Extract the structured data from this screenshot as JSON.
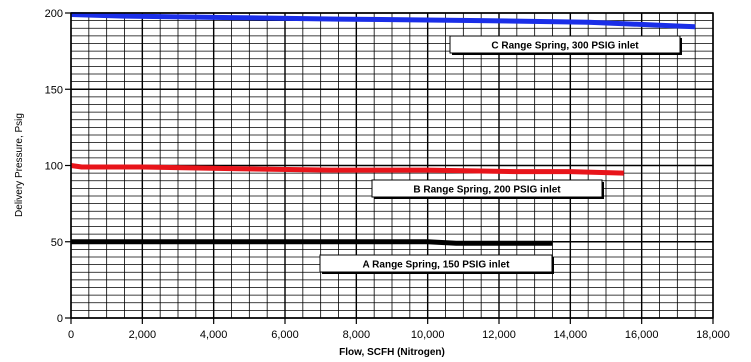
{
  "chart_data": {
    "type": "line",
    "title": "",
    "xlabel": "Flow, SCFH (Nitrogen)",
    "ylabel": "Delivery Pressure, Psig",
    "xlim": [
      0,
      18000
    ],
    "ylim": [
      0,
      200
    ],
    "x_ticks": [
      0,
      2000,
      4000,
      6000,
      8000,
      10000,
      12000,
      14000,
      16000,
      18000
    ],
    "x_tick_labels": [
      "0",
      "2,000",
      "4,000",
      "6,000",
      "8,000",
      "10,000",
      "12,000",
      "14,000",
      "16,000",
      "18,000"
    ],
    "y_ticks": [
      0,
      50,
      100,
      150,
      200
    ],
    "y_tick_labels": [
      "0",
      "50",
      "100",
      "150",
      "200"
    ],
    "grid": true,
    "series": [
      {
        "name": "A Range Spring, 150 PSIG inlet",
        "color": "#000000",
        "x": [
          0,
          2000,
          4000,
          6000,
          8000,
          10000,
          10800,
          12000,
          13500
        ],
        "y": [
          50,
          50,
          50,
          50,
          50,
          50,
          49,
          49,
          49
        ]
      },
      {
        "name": "B Range Spring, 200 PSIG inlet",
        "color": "#e8141a",
        "x": [
          0,
          300,
          2000,
          4500,
          7300,
          10000,
          12500,
          14000,
          15500
        ],
        "y": [
          100,
          99,
          99,
          98,
          97,
          97,
          96,
          96,
          95
        ]
      },
      {
        "name": "C Range Spring, 300 PSIG inlet",
        "color": "#1a2ee8",
        "x": [
          0,
          1500,
          4500,
          7500,
          11500,
          14500,
          16500,
          17500
        ],
        "y": [
          199,
          198,
          197,
          196,
          195,
          194,
          192,
          191
        ]
      }
    ],
    "annotations": [
      {
        "text": "C Range Spring, 300 PSIG inlet"
      },
      {
        "text": "B Range Spring, 200 PSIG inlet"
      },
      {
        "text": "A Range Spring, 150 PSIG inlet"
      }
    ]
  }
}
